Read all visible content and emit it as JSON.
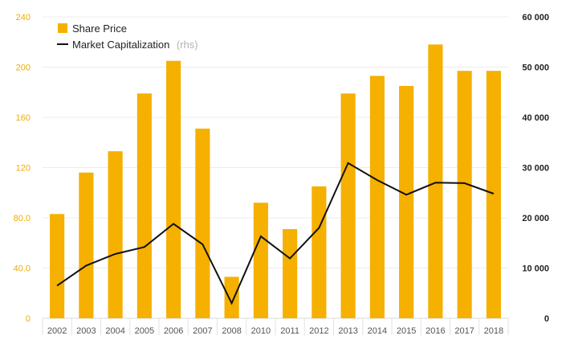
{
  "chart_data": {
    "type": "bar",
    "categories": [
      "2002",
      "2003",
      "2004",
      "2005",
      "2006",
      "2007",
      "2008",
      "2010",
      "2011",
      "2012",
      "2013",
      "2014",
      "2015",
      "2016",
      "2017",
      "2018"
    ],
    "series": [
      {
        "name": "Share Price",
        "type": "bar",
        "axis": "left",
        "color": "#f5b000",
        "values": [
          83,
          116,
          133,
          179,
          205,
          151,
          33,
          92,
          71,
          105,
          179,
          193,
          185,
          218,
          197,
          197
        ]
      },
      {
        "name": "Market Capitalization",
        "name_note": "(rhs)",
        "type": "line",
        "axis": "right",
        "color": "#111111",
        "values": [
          6500,
          10500,
          12800,
          14200,
          18800,
          14700,
          3000,
          16300,
          11900,
          18000,
          30900,
          27500,
          24600,
          27000,
          26900,
          24800
        ]
      }
    ],
    "y_left": {
      "ylim": [
        0,
        240
      ],
      "ticks": [
        "0",
        "40.0",
        "80.0",
        "120",
        "160",
        "200",
        "240"
      ],
      "tick_values": [
        0,
        40,
        80,
        120,
        160,
        200,
        240
      ]
    },
    "y_right": {
      "ylim": [
        0,
        60000
      ],
      "ticks": [
        "0",
        "10 000",
        "20 000",
        "30 000",
        "40 000",
        "50 000",
        "60 000"
      ],
      "tick_values": [
        0,
        10000,
        20000,
        30000,
        40000,
        50000,
        60000
      ]
    },
    "grid": true,
    "legend_position": "top-left",
    "title": "",
    "xlabel": "",
    "ylabel": ""
  }
}
